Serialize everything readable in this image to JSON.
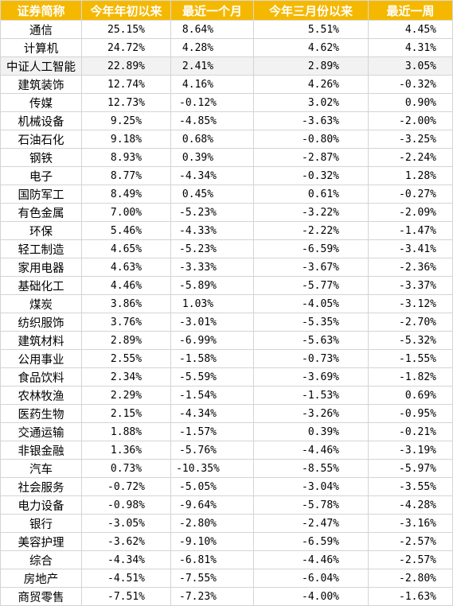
{
  "headers": [
    "证券简称",
    "今年年初以来",
    "最近一个月",
    "今年三月份以来",
    "最近一周"
  ],
  "header_color": "#F5B800",
  "highlight_row_index": 2,
  "rows": [
    [
      "通信",
      "25.15%",
      "8.64%",
      "5.51%",
      "4.45%"
    ],
    [
      "计算机",
      "24.72%",
      "4.28%",
      "4.62%",
      "4.31%"
    ],
    [
      "中证人工智能",
      "22.89%",
      "2.41%",
      "2.89%",
      "3.05%"
    ],
    [
      "建筑装饰",
      "12.74%",
      "4.16%",
      "4.26%",
      "-0.32%"
    ],
    [
      "传媒",
      "12.73%",
      "-0.12%",
      "3.02%",
      "0.90%"
    ],
    [
      "机械设备",
      "9.25%",
      "-4.85%",
      "-3.63%",
      "-2.00%"
    ],
    [
      "石油石化",
      "9.18%",
      "0.68%",
      "-0.80%",
      "-3.25%"
    ],
    [
      "钢铁",
      "8.93%",
      "0.39%",
      "-2.87%",
      "-2.24%"
    ],
    [
      "电子",
      "8.77%",
      "-4.34%",
      "-0.32%",
      "1.28%"
    ],
    [
      "国防军工",
      "8.49%",
      "0.45%",
      "0.61%",
      "-0.27%"
    ],
    [
      "有色金属",
      "7.00%",
      "-5.23%",
      "-3.22%",
      "-2.09%"
    ],
    [
      "环保",
      "5.46%",
      "-4.33%",
      "-2.22%",
      "-1.47%"
    ],
    [
      "轻工制造",
      "4.65%",
      "-5.23%",
      "-6.59%",
      "-3.41%"
    ],
    [
      "家用电器",
      "4.63%",
      "-3.33%",
      "-3.67%",
      "-2.36%"
    ],
    [
      "基础化工",
      "4.46%",
      "-5.89%",
      "-5.77%",
      "-3.37%"
    ],
    [
      "煤炭",
      "3.86%",
      "1.03%",
      "-4.05%",
      "-3.12%"
    ],
    [
      "纺织服饰",
      "3.76%",
      "-3.01%",
      "-5.35%",
      "-2.70%"
    ],
    [
      "建筑材料",
      "2.89%",
      "-6.99%",
      "-5.63%",
      "-5.32%"
    ],
    [
      "公用事业",
      "2.55%",
      "-1.58%",
      "-0.73%",
      "-1.55%"
    ],
    [
      "食品饮料",
      "2.34%",
      "-5.59%",
      "-3.69%",
      "-1.82%"
    ],
    [
      "农林牧渔",
      "2.29%",
      "-1.54%",
      "-1.53%",
      "0.69%"
    ],
    [
      "医药生物",
      "2.15%",
      "-4.34%",
      "-3.26%",
      "-0.95%"
    ],
    [
      "交通运输",
      "1.88%",
      "-1.57%",
      "0.39%",
      "-0.21%"
    ],
    [
      "非银金融",
      "1.36%",
      "-5.76%",
      "-4.46%",
      "-3.19%"
    ],
    [
      "汽车",
      "0.73%",
      "-10.35%",
      "-8.55%",
      "-5.97%"
    ],
    [
      "社会服务",
      "-0.72%",
      "-5.05%",
      "-3.04%",
      "-3.55%"
    ],
    [
      "电力设备",
      "-0.98%",
      "-9.64%",
      "-5.78%",
      "-4.28%"
    ],
    [
      "银行",
      "-3.05%",
      "-2.80%",
      "-2.47%",
      "-3.16%"
    ],
    [
      "美容护理",
      "-3.62%",
      "-9.10%",
      "-6.59%",
      "-2.57%"
    ],
    [
      "综合",
      "-4.34%",
      "-6.81%",
      "-4.46%",
      "-2.57%"
    ],
    [
      "房地产",
      "-4.51%",
      "-7.55%",
      "-6.04%",
      "-2.80%"
    ],
    [
      "商贸零售",
      "-7.51%",
      "-7.23%",
      "-4.00%",
      "-1.63%"
    ]
  ]
}
